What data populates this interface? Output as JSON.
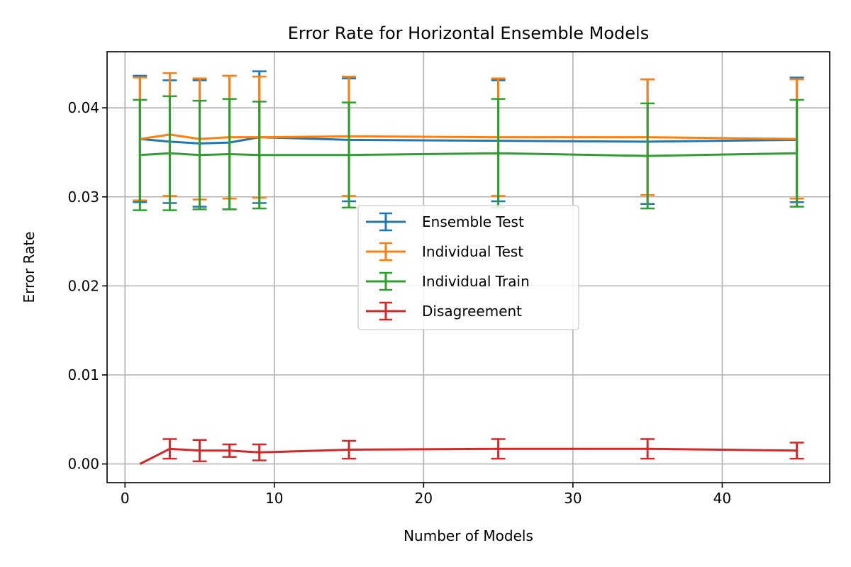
{
  "chart_data": {
    "type": "line",
    "title": "Error Rate for Horizontal Ensemble Models",
    "xlabel": "Number of Models",
    "ylabel": "Error Rate",
    "xlim": [
      -1.2,
      47.2
    ],
    "ylim": [
      -0.0021,
      0.0463
    ],
    "xticks": [
      0,
      10,
      20,
      30,
      40
    ],
    "xtick_labels": [
      "0",
      "10",
      "20",
      "30",
      "40"
    ],
    "yticks": [
      0.0,
      0.01,
      0.02,
      0.03,
      0.04
    ],
    "ytick_labels": [
      "0.00",
      "0.01",
      "0.02",
      "0.03",
      "0.04"
    ],
    "grid": true,
    "legend_position": "center",
    "x": [
      1,
      3,
      5,
      7,
      9,
      15,
      25,
      35,
      45
    ],
    "series": [
      {
        "name": "Ensemble Test",
        "color": "#1f77b4",
        "values": [
          0.0365,
          0.0362,
          0.036,
          0.0361,
          0.0367,
          0.0364,
          0.0363,
          0.0362,
          0.0364
        ],
        "errors": [
          0.0071,
          0.0069,
          0.0071,
          0.0075,
          0.0074,
          0.0069,
          0.0068,
          0.007,
          0.007
        ]
      },
      {
        "name": "Individual Test",
        "color": "#ff7f0e",
        "values": [
          0.0365,
          0.037,
          0.0365,
          0.0367,
          0.0367,
          0.0368,
          0.0367,
          0.0367,
          0.0365
        ],
        "errors": [
          0.0069,
          0.0069,
          0.0068,
          0.0069,
          0.0068,
          0.0067,
          0.0066,
          0.0065,
          0.0067
        ]
      },
      {
        "name": "Individual Train",
        "color": "#2ca02c",
        "values": [
          0.0347,
          0.0349,
          0.0347,
          0.0348,
          0.0347,
          0.0347,
          0.0349,
          0.0346,
          0.0349
        ],
        "errors": [
          0.0062,
          0.0064,
          0.0061,
          0.0062,
          0.006,
          0.0059,
          0.0061,
          0.0059,
          0.006
        ]
      },
      {
        "name": "Disagreement",
        "color": "#d62728",
        "values": [
          0.0,
          0.0017,
          0.0015,
          0.0015,
          0.0013,
          0.0016,
          0.0017,
          0.0017,
          0.0015
        ],
        "errors": [
          0.0,
          0.0011,
          0.0012,
          0.0007,
          0.0009,
          0.001,
          0.0011,
          0.0011,
          0.0009
        ]
      }
    ]
  }
}
